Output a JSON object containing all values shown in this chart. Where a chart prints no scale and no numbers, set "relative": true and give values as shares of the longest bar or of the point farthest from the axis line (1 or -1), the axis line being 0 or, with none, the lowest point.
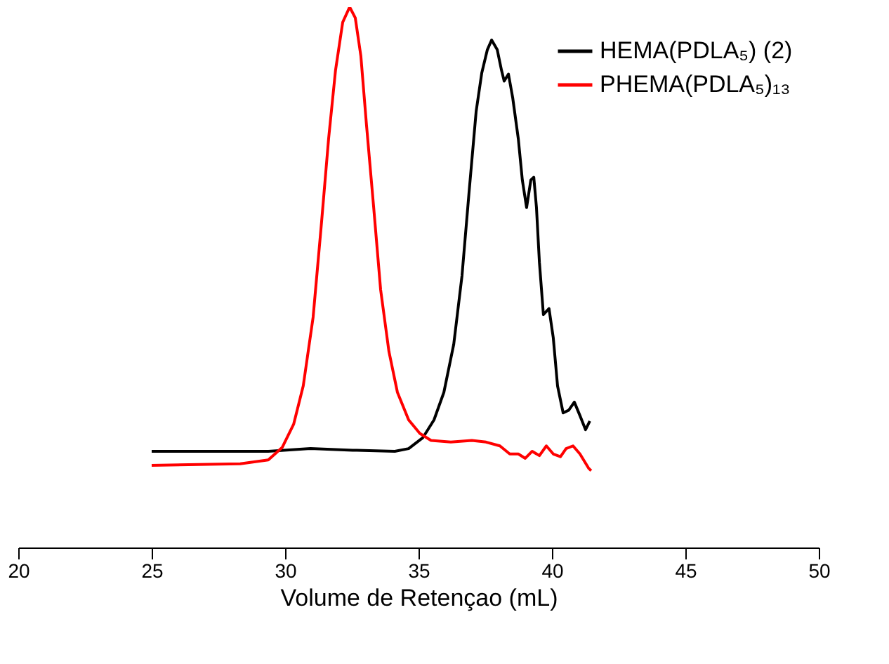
{
  "chart_data": {
    "type": "line",
    "relative": true,
    "xlabel": "Volume de Retençao (mL)",
    "xlim": [
      20,
      50
    ],
    "xticks": [
      20,
      25,
      30,
      35,
      40,
      45,
      50
    ],
    "grid": false,
    "legend": "top right",
    "marker": "none",
    "line_style": "solid",
    "series": [
      {
        "name": "HEMA(PDLA₅) (2)",
        "color": "#000000",
        "x": [
          25.0,
          29.37,
          30.95,
          32.53,
          34.11,
          34.63,
          35.16,
          35.58,
          35.95,
          36.32,
          36.63,
          36.89,
          37.16,
          37.37,
          37.58,
          37.74,
          37.95,
          38.11,
          38.21,
          38.37,
          38.53,
          38.74,
          38.89,
          39.05,
          39.21,
          39.32,
          39.42,
          39.53,
          39.68,
          39.89,
          40.05,
          40.21,
          40.42,
          40.63,
          40.84,
          41.05,
          41.26,
          41.42
        ],
        "values": [
          0.178,
          0.178,
          0.183,
          0.18,
          0.178,
          0.183,
          0.203,
          0.236,
          0.287,
          0.376,
          0.503,
          0.655,
          0.807,
          0.878,
          0.921,
          0.939,
          0.921,
          0.883,
          0.863,
          0.876,
          0.832,
          0.756,
          0.68,
          0.629,
          0.68,
          0.685,
          0.629,
          0.528,
          0.431,
          0.442,
          0.388,
          0.299,
          0.249,
          0.254,
          0.269,
          0.244,
          0.218,
          0.234
        ]
      },
      {
        "name": "PHEMA(PDLA₅)₁₃",
        "color": "#ff0000",
        "x": [
          25.0,
          28.32,
          29.37,
          29.89,
          30.32,
          30.68,
          31.05,
          31.37,
          31.63,
          31.89,
          32.16,
          32.42,
          32.63,
          32.84,
          33.05,
          33.32,
          33.58,
          33.89,
          34.21,
          34.63,
          35.05,
          35.47,
          36.21,
          37.0,
          37.53,
          38.05,
          38.42,
          38.74,
          39.0,
          39.26,
          39.53,
          39.79,
          40.05,
          40.32,
          40.53,
          40.79,
          41.05,
          41.37,
          41.47
        ],
        "values": [
          0.152,
          0.155,
          0.162,
          0.185,
          0.228,
          0.299,
          0.426,
          0.604,
          0.756,
          0.883,
          0.972,
          1,
          0.98,
          0.909,
          0.782,
          0.629,
          0.477,
          0.363,
          0.287,
          0.236,
          0.211,
          0.198,
          0.195,
          0.198,
          0.195,
          0.188,
          0.173,
          0.173,
          0.165,
          0.178,
          0.17,
          0.188,
          0.173,
          0.168,
          0.183,
          0.188,
          0.173,
          0.147,
          0.142
        ]
      }
    ]
  }
}
